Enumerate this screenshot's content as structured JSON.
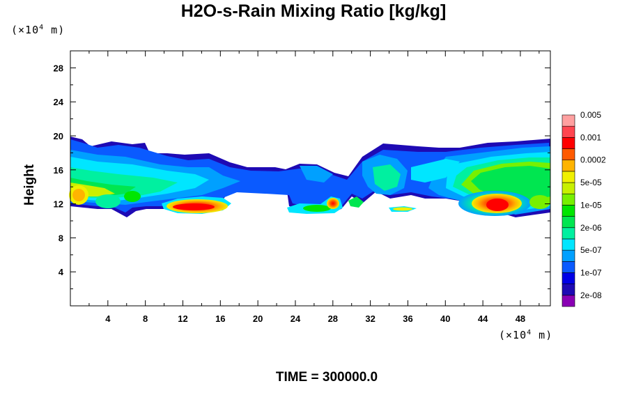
{
  "chart_data": {
    "type": "heatmap",
    "title": "H2O-s-Rain Mixing Ratio [kg/kg]",
    "ylabel": "Height",
    "xlabel": "",
    "x_unit": {
      "prefix": "(×10",
      "exp": "4",
      "suffix": " m)"
    },
    "y_unit": {
      "prefix": "(×10",
      "exp": "4",
      "suffix": " m)"
    },
    "xlim": [
      0,
      51.2
    ],
    "ylim": [
      0,
      30
    ],
    "x_ticks": [
      "4",
      "8",
      "12",
      "16",
      "20",
      "24",
      "28",
      "32",
      "36",
      "40",
      "44",
      "48"
    ],
    "y_ticks": [
      "4",
      "8",
      "12",
      "16",
      "20",
      "24",
      "28"
    ],
    "grid": false,
    "colorbar": {
      "levels": [
        "2e-08",
        "1e-07",
        "5e-07",
        "2e-06",
        "1e-05",
        "5e-05",
        "0.0002",
        "0.001",
        "0.005"
      ],
      "colors": [
        "#8a00b4",
        "#1e0ab4",
        "#0000e6",
        "#0a5aff",
        "#00a0ff",
        "#00e6ff",
        "#00f0a0",
        "#00e650",
        "#00e600",
        "#78f000",
        "#c8f000",
        "#f0f000",
        "#ffb400",
        "#ff5a00",
        "#ff0000",
        "#ff4650",
        "#ffa0a0"
      ]
    },
    "bands": [
      {
        "name": "upper-cloud-layer",
        "x": [
          0,
          51.2
        ],
        "y": [
          10.5,
          19.8
        ]
      },
      {
        "name": "max-left",
        "x": [
          11,
          15
        ],
        "y": [
          11,
          12
        ],
        "value": "0.001"
      },
      {
        "name": "max-right",
        "x": [
          44,
          47
        ],
        "y": [
          11,
          13
        ],
        "value": "0.001"
      }
    ]
  },
  "footer": {
    "time": "TIME = 300000.0"
  }
}
